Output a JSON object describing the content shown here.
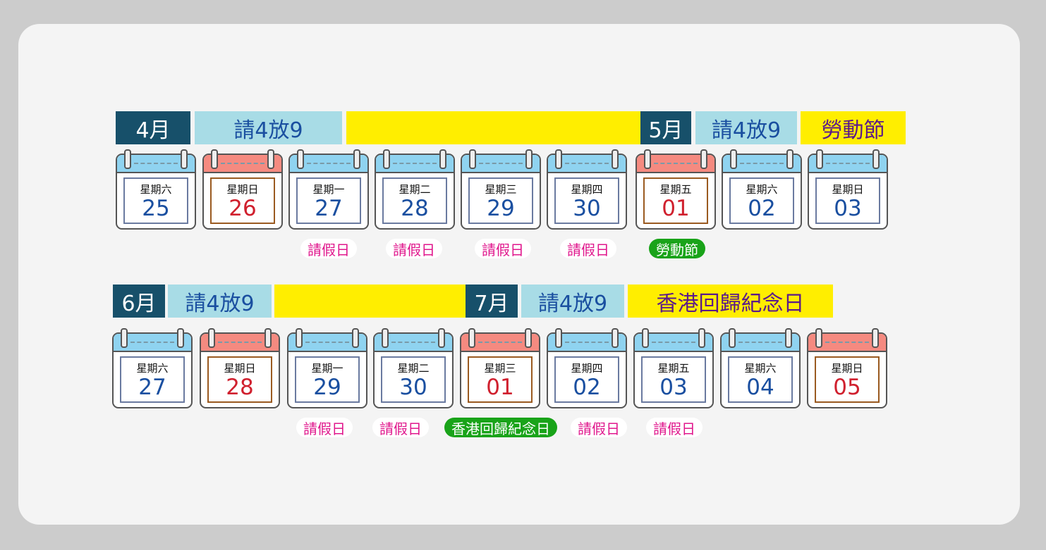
{
  "rows": [
    {
      "headers": [
        {
          "text": "4月",
          "kind": "month"
        },
        {
          "text": "請4放9",
          "kind": "plan"
        },
        {
          "text": "",
          "kind": "highlight"
        },
        {
          "text": "5月",
          "kind": "month"
        },
        {
          "text": "請4放9",
          "kind": "plan"
        },
        {
          "text": "勞動節",
          "kind": "highlight"
        }
      ],
      "days": [
        {
          "weekday": "星期六",
          "date": "25",
          "holiday": false
        },
        {
          "weekday": "星期日",
          "date": "26",
          "holiday": true
        },
        {
          "weekday": "星期一",
          "date": "27",
          "holiday": false,
          "tag": "請假日"
        },
        {
          "weekday": "星期二",
          "date": "28",
          "holiday": false,
          "tag": "請假日"
        },
        {
          "weekday": "星期三",
          "date": "29",
          "holiday": false,
          "tag": "請假日"
        },
        {
          "weekday": "星期四",
          "date": "30",
          "holiday": false,
          "tag": "請假日"
        },
        {
          "weekday": "星期五",
          "date": "01",
          "holiday": true,
          "tag": "勞動節",
          "tag_type": "holiday"
        },
        {
          "weekday": "星期六",
          "date": "02",
          "holiday": false
        },
        {
          "weekday": "星期日",
          "date": "03",
          "holiday": false
        }
      ]
    },
    {
      "headers": [
        {
          "text": "6月",
          "kind": "month"
        },
        {
          "text": "請4放9",
          "kind": "plan"
        },
        {
          "text": "",
          "kind": "highlight"
        },
        {
          "text": "7月",
          "kind": "month"
        },
        {
          "text": "請4放9",
          "kind": "plan"
        },
        {
          "text": "香港回歸紀念日",
          "kind": "highlight"
        }
      ],
      "days": [
        {
          "weekday": "星期六",
          "date": "27",
          "holiday": false
        },
        {
          "weekday": "星期日",
          "date": "28",
          "holiday": true
        },
        {
          "weekday": "星期一",
          "date": "29",
          "holiday": false,
          "tag": "請假日"
        },
        {
          "weekday": "星期二",
          "date": "30",
          "holiday": false,
          "tag": "請假日"
        },
        {
          "weekday": "星期三",
          "date": "01",
          "holiday": true,
          "tag": "香港回歸紀念日",
          "tag_type": "holiday"
        },
        {
          "weekday": "星期四",
          "date": "02",
          "holiday": false,
          "tag": "請假日"
        },
        {
          "weekday": "星期五",
          "date": "03",
          "holiday": false,
          "tag": "請假日"
        },
        {
          "weekday": "星期六",
          "date": "04",
          "holiday": false
        },
        {
          "weekday": "星期日",
          "date": "05",
          "holiday": true
        }
      ]
    }
  ],
  "colors": {
    "month_bg": "#17506a",
    "plan_bg": "#a8dce6",
    "highlight_bg": "#ffee00",
    "leave_text": "#e0168c",
    "holiday_tag_bg": "#19a319",
    "holiday_date": "#d0202e",
    "date": "#1a4fa0"
  }
}
